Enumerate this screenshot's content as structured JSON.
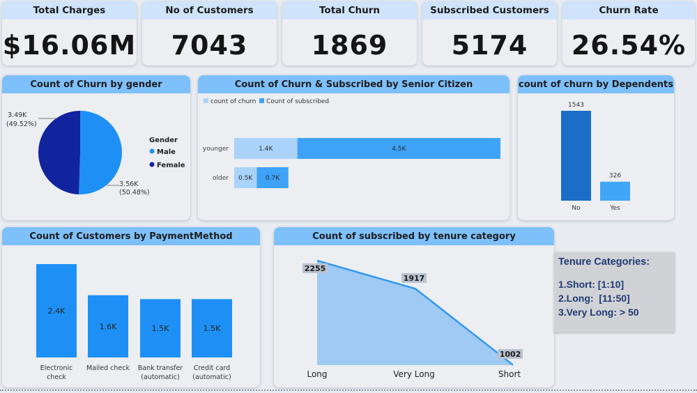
{
  "kpis": [
    {
      "title": "Total Charges",
      "value": "$16.06M"
    },
    {
      "title": "No of Customers",
      "value": "7043"
    },
    {
      "title": "Total Churn",
      "value": "1869"
    },
    {
      "title": "Subscribed Customers",
      "value": "5174"
    },
    {
      "title": "Churn Rate",
      "value": "26.54%"
    }
  ],
  "tenure_note": {
    "title": "Tenure Categories:",
    "lines": [
      "1.Short: [1:10]",
      "2.Long:  [11:50]",
      "3.Very Long: > 50"
    ]
  },
  "colors": {
    "light_blue": "#a9d3fa",
    "mid_blue": "#3ea2f6",
    "dark_blue": "#12239e",
    "dependents_no": "#1a6ec7",
    "dependents_yes": "#42a6f6",
    "payment_bar": "#1e90f5",
    "tenure_area": "#9fcaf3",
    "tenure_line": "#3399ee"
  },
  "chart_data": [
    {
      "id": "gender",
      "type": "pie",
      "title": "Count of Churn by gender",
      "legend_title": "Gender",
      "legend_position": "right",
      "slices": [
        {
          "label": "Male",
          "value": 3.56,
          "display": "3.56K",
          "pct": "(50.48%)",
          "color": "#1e90f5"
        },
        {
          "label": "Female",
          "value": 3.49,
          "display": "3.49K",
          "pct": "(49.52%)",
          "color": "#12239e"
        }
      ]
    },
    {
      "id": "senior",
      "type": "bar",
      "orientation": "horizontal",
      "stacked": true,
      "title": "Count of Churn & Subscribed by Senior Citizen",
      "legend_position": "top-left",
      "categories": [
        "younger",
        "older"
      ],
      "series": [
        {
          "name": "count of churn",
          "values": [
            1.4,
            0.5
          ],
          "labels": [
            "1.4K",
            "0.5K"
          ],
          "color": "#a9d3fa"
        },
        {
          "name": "Count of subscribed",
          "values": [
            4.5,
            0.7
          ],
          "labels": [
            "4.5K",
            "0.7K"
          ],
          "color": "#3ea2f6"
        }
      ]
    },
    {
      "id": "dependents",
      "type": "bar",
      "title": "count of churn by Dependents",
      "categories": [
        "No",
        "Yes"
      ],
      "values": [
        1543,
        326
      ],
      "labels": [
        "1543",
        "326"
      ],
      "colors": [
        "#1a6ec7",
        "#42a6f6"
      ]
    },
    {
      "id": "payment",
      "type": "bar",
      "title": "Count of Customers by PaymentMethod",
      "categories": [
        "Electronic check",
        "Mailed check",
        "Bank transfer (automatic)",
        "Credit card (automatic)"
      ],
      "category_lines": [
        [
          "Electronic",
          "check"
        ],
        [
          "Mailed check"
        ],
        [
          "Bank transfer",
          "(automatic)"
        ],
        [
          "Credit card",
          "(automatic)"
        ]
      ],
      "values": [
        2.4,
        1.6,
        1.5,
        1.5
      ],
      "labels": [
        "2.4K",
        "1.6K",
        "1.5K",
        "1.5K"
      ]
    },
    {
      "id": "tenure",
      "type": "area",
      "title": "Count of subscribed by tenure category",
      "categories": [
        "Long",
        "Very Long",
        "Short"
      ],
      "values": [
        2255,
        1917,
        1002
      ],
      "labels": [
        "2255",
        "1917",
        "1002"
      ]
    }
  ]
}
